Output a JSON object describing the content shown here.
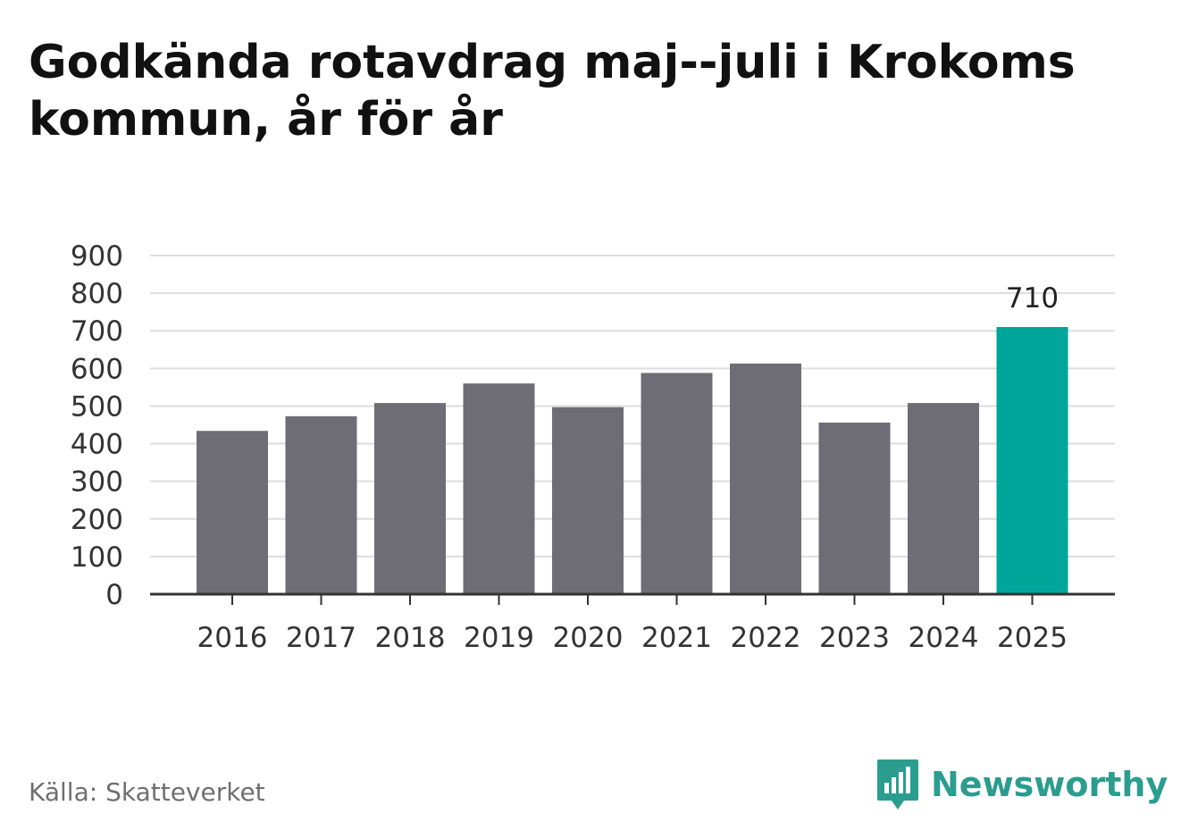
{
  "title": "Godkända rotavdrag maj--juli i Krokoms kommun, år för år",
  "source": "Källa: Skatteverket",
  "brand": {
    "name": "Newsworthy",
    "icon": "bar-chart-speech-bubble-icon",
    "color": "#2a9d8f"
  },
  "colors": {
    "bar": "#6e6d75",
    "highlight": "#00a59a",
    "grid": "#dddddd",
    "axis": "#333333"
  },
  "chart_data": {
    "type": "bar",
    "categories": [
      "2016",
      "2017",
      "2018",
      "2019",
      "2020",
      "2021",
      "2022",
      "2023",
      "2024",
      "2025"
    ],
    "values": [
      434,
      473,
      508,
      560,
      497,
      588,
      613,
      456,
      508,
      710
    ],
    "ylim": [
      0,
      900
    ],
    "yticks": [
      0,
      100,
      200,
      300,
      400,
      500,
      600,
      700,
      800,
      900
    ],
    "highlight_index": 9,
    "data_labels": [
      {
        "index": 9,
        "text": "710"
      }
    ],
    "grid": true,
    "xlabel": "",
    "ylabel": ""
  }
}
